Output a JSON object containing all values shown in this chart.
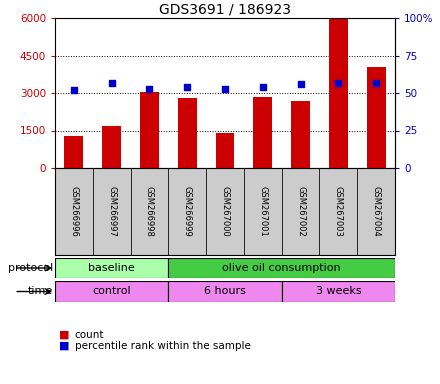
{
  "title": "GDS3691 / 186923",
  "samples": [
    "GSM266996",
    "GSM266997",
    "GSM266998",
    "GSM266999",
    "GSM267000",
    "GSM267001",
    "GSM267002",
    "GSM267003",
    "GSM267004"
  ],
  "counts": [
    1300,
    1700,
    3050,
    2800,
    1400,
    2850,
    2700,
    5950,
    4050
  ],
  "percentile_ranks": [
    52,
    57,
    53,
    54,
    53,
    54,
    56,
    57,
    57
  ],
  "left_ylim": [
    0,
    6000
  ],
  "right_ylim": [
    0,
    100
  ],
  "left_yticks": [
    0,
    1500,
    3000,
    4500,
    6000
  ],
  "right_yticks": [
    0,
    25,
    50,
    75,
    100
  ],
  "right_yticklabels": [
    "0",
    "25",
    "50",
    "75",
    "100%"
  ],
  "bar_color": "#cc0000",
  "scatter_color": "#0000cc",
  "protocol_labels": [
    "baseline",
    "olive oil consumption"
  ],
  "protocol_color_light": "#aaffaa",
  "protocol_color_dark": "#44cc44",
  "time_labels": [
    "control",
    "6 hours",
    "3 weeks"
  ],
  "time_color": "#ee88ee",
  "legend_count_color": "#cc0000",
  "legend_pct_color": "#0000cc",
  "bg_color": "#ffffff",
  "tick_label_bg": "#cccccc"
}
